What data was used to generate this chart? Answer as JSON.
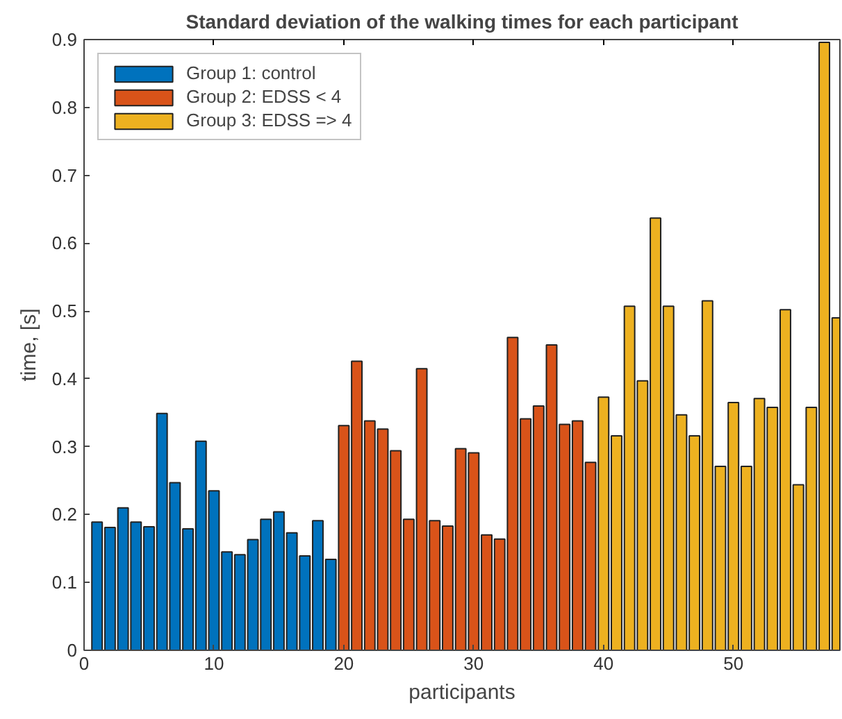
{
  "chart_data": {
    "type": "bar",
    "title": "Standard deviation of the walking times for each participant",
    "xlabel": "participants",
    "ylabel": "time, [s]",
    "xlim": [
      0,
      58.2
    ],
    "xticks": [
      0,
      10,
      20,
      30,
      40,
      50
    ],
    "ylim": [
      0,
      0.9
    ],
    "yticks": [
      0,
      0.1,
      0.2,
      0.3,
      0.4,
      0.5,
      0.6,
      0.7,
      0.8,
      0.9
    ],
    "grid": false,
    "legend": "top left",
    "series": [
      {
        "name": "Group 1: control",
        "color": "#0072bd",
        "x": [
          1,
          2,
          3,
          4,
          5,
          6,
          7,
          8,
          9,
          10,
          11,
          12,
          13,
          14,
          15,
          16,
          17,
          18,
          19
        ],
        "values": [
          0.189,
          0.181,
          0.21,
          0.189,
          0.182,
          0.349,
          0.247,
          0.179,
          0.308,
          0.235,
          0.145,
          0.141,
          0.163,
          0.193,
          0.204,
          0.173,
          0.139,
          0.191,
          0.134
        ]
      },
      {
        "name": "Group 2: EDSS < 4",
        "color": "#d95319",
        "x": [
          20,
          21,
          22,
          23,
          24,
          25,
          26,
          27,
          28,
          29,
          30,
          31,
          32,
          33,
          34,
          35,
          36,
          37,
          38,
          39
        ],
        "values": [
          0.331,
          0.426,
          0.338,
          0.326,
          0.294,
          0.193,
          0.415,
          0.191,
          0.183,
          0.297,
          0.291,
          0.17,
          0.164,
          0.461,
          0.341,
          0.36,
          0.45,
          0.333,
          0.338,
          0.277
        ]
      },
      {
        "name": "Group 3: EDSS => 4",
        "color": "#edb120",
        "x": [
          40,
          41,
          42,
          43,
          44,
          45,
          46,
          47,
          48,
          49,
          50,
          51,
          52,
          53,
          54,
          55,
          56,
          57,
          58
        ],
        "values": [
          0.373,
          0.316,
          0.507,
          0.397,
          0.637,
          0.507,
          0.347,
          0.316,
          0.515,
          0.271,
          0.365,
          0.271,
          0.371,
          0.358,
          0.502,
          0.244,
          0.358,
          0.896,
          0.49
        ]
      }
    ]
  }
}
